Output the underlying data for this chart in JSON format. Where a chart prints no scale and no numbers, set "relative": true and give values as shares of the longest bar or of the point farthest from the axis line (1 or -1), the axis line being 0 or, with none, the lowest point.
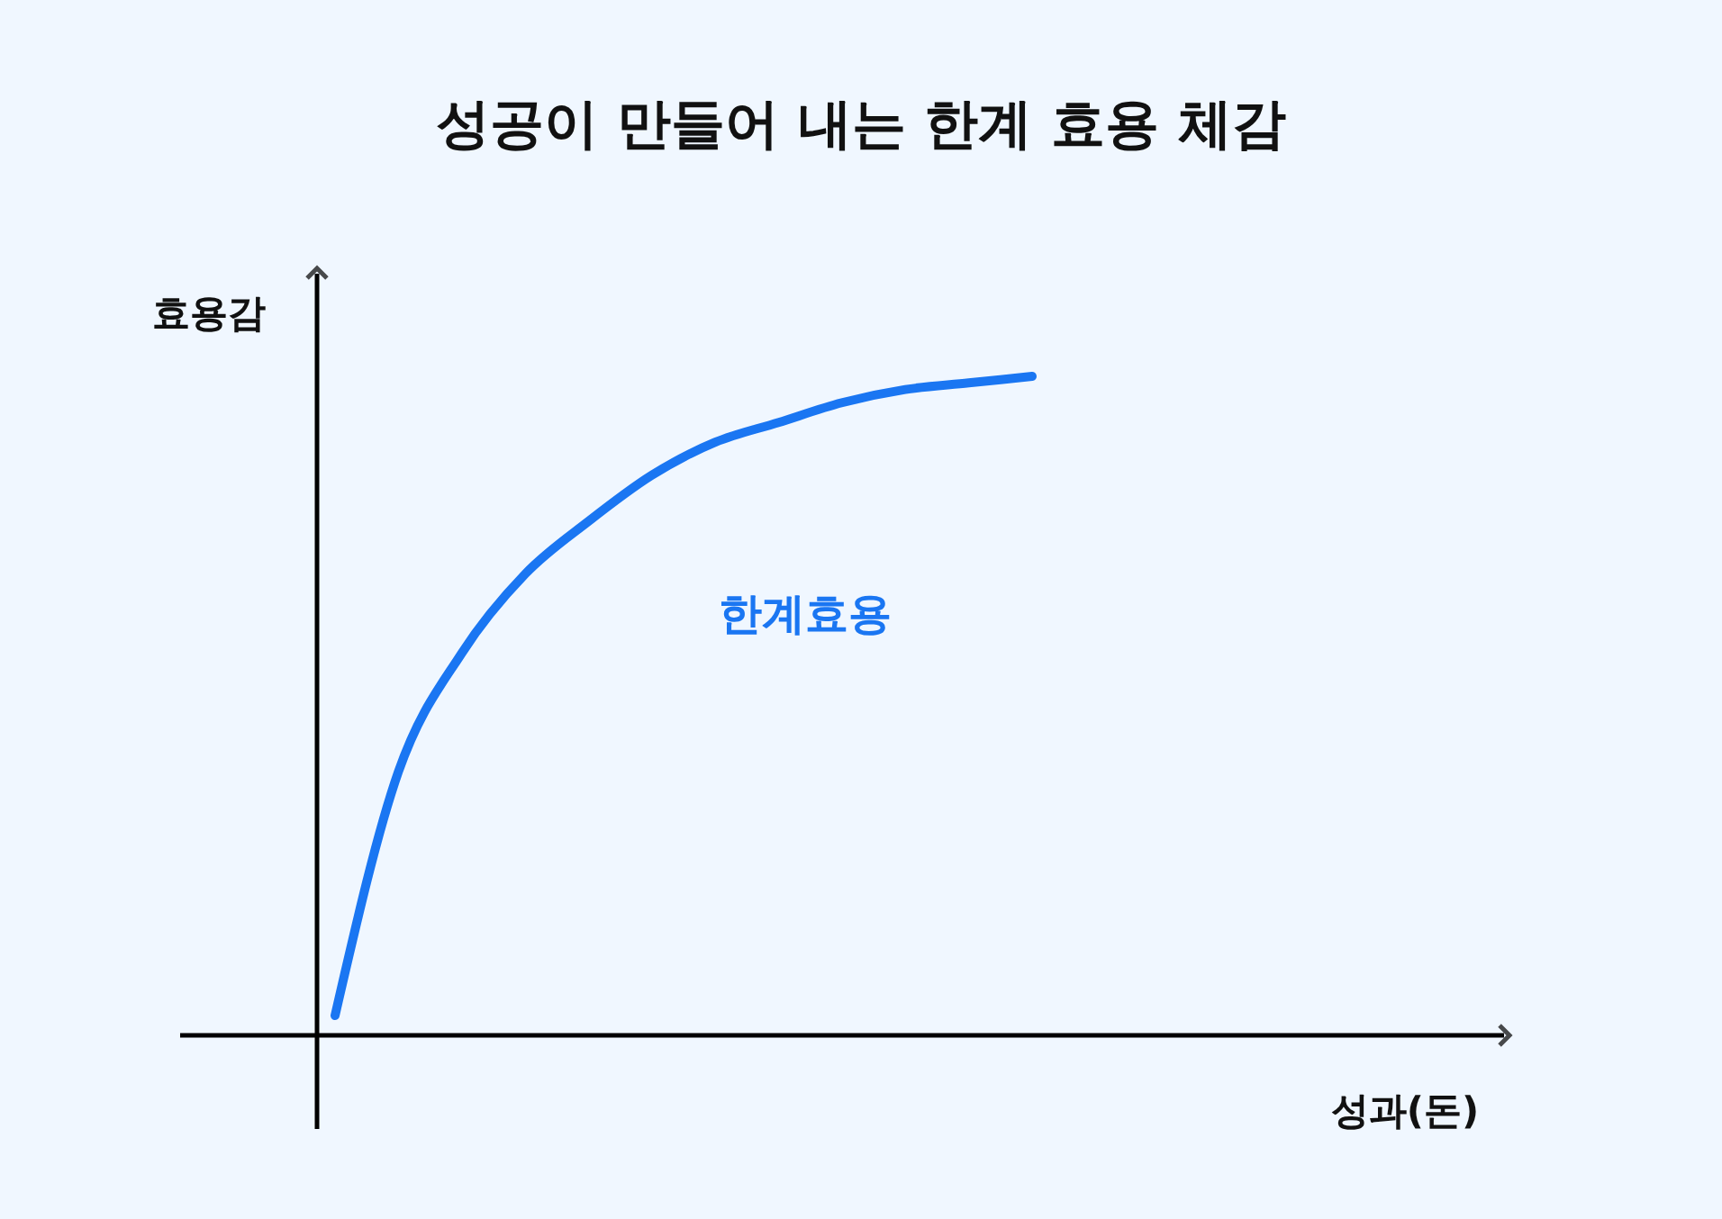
{
  "chart_data": {
    "type": "line",
    "title": "성공이 만들어 내는 한계 효용 체감",
    "ylabel": "효용감",
    "relative": true,
    "categories": [
      null,
      null,
      null,
      null,
      null,
      null,
      null,
      null,
      null,
      null,
      null,
      null
    ],
    "series": [
      {
        "color": "#1a76f2",
        "values": [
          0.03,
          0.4,
          0.58,
          0.7,
          0.78,
          0.85,
          0.9,
          0.93,
          0.96,
          0.98,
          0.99,
          1
        ]
      }
    ],
    "annotations": [
      "한계효용",
      "성과(돈)"
    ]
  }
}
